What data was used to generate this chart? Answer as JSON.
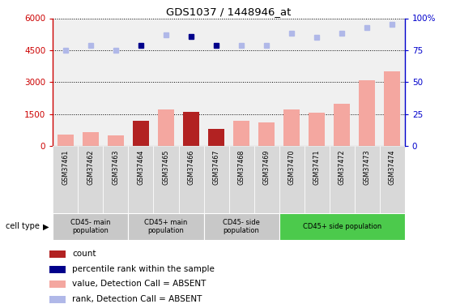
{
  "title": "GDS1037 / 1448946_at",
  "samples": [
    "GSM37461",
    "GSM37462",
    "GSM37463",
    "GSM37464",
    "GSM37465",
    "GSM37466",
    "GSM37467",
    "GSM37468",
    "GSM37469",
    "GSM37470",
    "GSM37471",
    "GSM37472",
    "GSM37473",
    "GSM37474"
  ],
  "bar_values": [
    550,
    650,
    500,
    1200,
    1700,
    1600,
    800,
    1200,
    1100,
    1700,
    1550,
    2000,
    3100,
    3500
  ],
  "bar_colors": [
    "#f4a7a0",
    "#f4a7a0",
    "#f4a7a0",
    "#b22222",
    "#f4a7a0",
    "#b22222",
    "#b22222",
    "#f4a7a0",
    "#f4a7a0",
    "#f4a7a0",
    "#f4a7a0",
    "#f4a7a0",
    "#f4a7a0",
    "#f4a7a0"
  ],
  "rank_dots_right": [
    75,
    79,
    75,
    79,
    87,
    86,
    79,
    79,
    79,
    88,
    85,
    88,
    93,
    95
  ],
  "rank_dot_colors": [
    "#b0b8e8",
    "#b0b8e8",
    "#b0b8e8",
    "#00008b",
    "#b0b8e8",
    "#00008b",
    "#00008b",
    "#b0b8e8",
    "#b0b8e8",
    "#b0b8e8",
    "#b0b8e8",
    "#b0b8e8",
    "#b0b8e8",
    "#b0b8e8"
  ],
  "ylim_left": [
    0,
    6000
  ],
  "ylim_right": [
    0,
    100
  ],
  "yticks_left": [
    0,
    1500,
    3000,
    4500,
    6000
  ],
  "yticks_right": [
    0,
    25,
    50,
    75,
    100
  ],
  "ytick_labels_left": [
    "0",
    "1500",
    "3000",
    "4500",
    "6000"
  ],
  "ytick_labels_right": [
    "0",
    "25",
    "50",
    "75",
    "100%"
  ],
  "cell_type_groups": [
    {
      "label": "CD45- main\npopulation",
      "start": 0,
      "end": 2,
      "color": "#c8c8c8"
    },
    {
      "label": "CD45+ main\npopulation",
      "start": 3,
      "end": 5,
      "color": "#c8c8c8"
    },
    {
      "label": "CD45- side\npopulation",
      "start": 6,
      "end": 8,
      "color": "#c8c8c8"
    },
    {
      "label": "CD45+ side population",
      "start": 9,
      "end": 13,
      "color": "#4cca4c"
    }
  ],
  "legend_items": [
    {
      "color": "#b22222",
      "label": "count"
    },
    {
      "color": "#00008b",
      "label": "percentile rank within the sample"
    },
    {
      "color": "#f4a7a0",
      "label": "value, Detection Call = ABSENT"
    },
    {
      "color": "#b0b8e8",
      "label": "rank, Detection Call = ABSENT"
    }
  ],
  "background_color": "#ffffff",
  "left_axis_color": "#cc0000",
  "right_axis_color": "#0000cc",
  "ax_facecolor": "#f0f0f0"
}
